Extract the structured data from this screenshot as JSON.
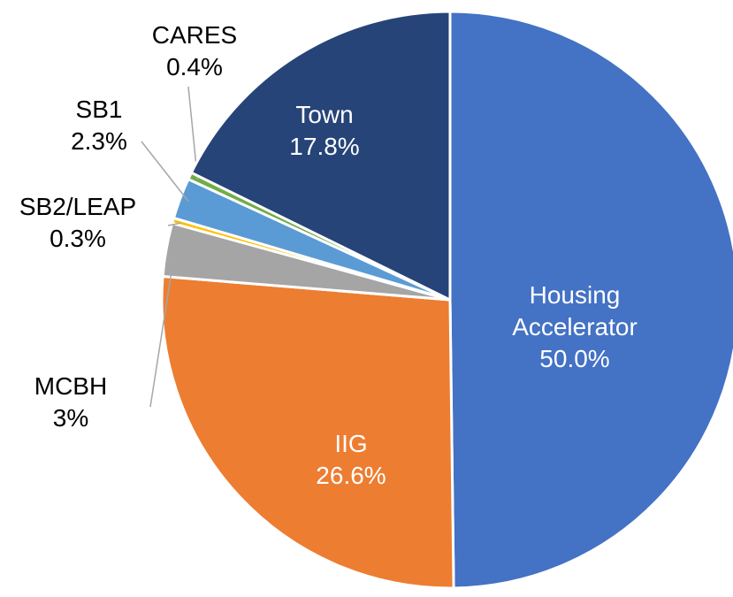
{
  "chart_data": {
    "type": "pie",
    "categories": [
      "Housing Accelerator",
      "IIG",
      "MCBH",
      "SB2/LEAP",
      "SB1",
      "CARES",
      "Town"
    ],
    "values": [
      50.0,
      26.6,
      3,
      0.3,
      2.3,
      0.4,
      17.8
    ],
    "value_labels": [
      "50.0%",
      "26.6%",
      "3%",
      "0.3%",
      "2.3%",
      "0.4%",
      "17.8%"
    ],
    "colors": [
      "#4472c4",
      "#ed7d31",
      "#a5a5a5",
      "#ffc000",
      "#5b9bd5",
      "#70ad47",
      "#264478"
    ]
  }
}
